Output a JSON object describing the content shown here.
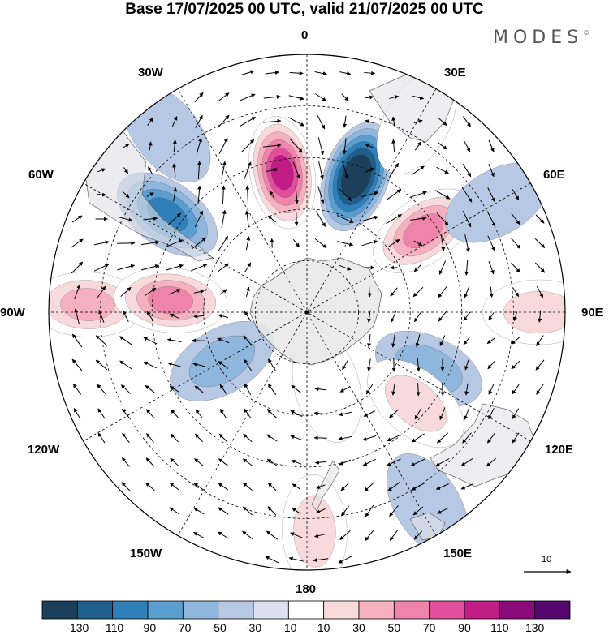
{
  "title": "Base 17/07/2025 00 UTC, valid 21/07/2025 00 UTC",
  "logo": "MODES",
  "logo_mark": "©",
  "longitude_labels": [
    {
      "key": "0",
      "text": "0"
    },
    {
      "key": "30E",
      "text": "30E"
    },
    {
      "key": "60E",
      "text": "60E"
    },
    {
      "key": "90E",
      "text": "90E"
    },
    {
      "key": "120E",
      "text": "120E"
    },
    {
      "key": "150E",
      "text": "150E"
    },
    {
      "key": "180",
      "text": "180"
    },
    {
      "key": "150W",
      "text": "150W"
    },
    {
      "key": "120W",
      "text": "120W"
    },
    {
      "key": "90W",
      "text": "90W"
    },
    {
      "key": "60W",
      "text": "60W"
    },
    {
      "key": "30W",
      "text": "30W"
    }
  ],
  "vector_scale_label": "10",
  "colorbar": {
    "ticks": [
      "-130",
      "-110",
      "-90",
      "-70",
      "-50",
      "-30",
      "-10",
      "10",
      "30",
      "50",
      "70",
      "90",
      "110",
      "130"
    ],
    "colors": [
      "#1c3f5c",
      "#1f5f8b",
      "#2f80b8",
      "#5a9dce",
      "#8fb6dc",
      "#b7c8e4",
      "#dcdff0",
      "#ffffff",
      "#f9dadc",
      "#f6b1c0",
      "#ef84aa",
      "#e04f9b",
      "#c21c87",
      "#8c0b7a",
      "#54076f"
    ]
  },
  "map_data": {
    "projection": "south-polar-stereographic",
    "anomalies": [
      {
        "lon": -10,
        "r": 0.55,
        "value": 125
      },
      {
        "lon": 20,
        "r": 0.56,
        "value": -135
      },
      {
        "lon": -55,
        "r": 0.66,
        "value": -85
      },
      {
        "lon": 55,
        "r": 0.55,
        "value": 85
      },
      {
        "lon": -88,
        "r": 0.85,
        "value": 60
      },
      {
        "lon": -85,
        "r": 0.53,
        "value": 70
      },
      {
        "lon": 90,
        "r": 0.9,
        "value": 40
      },
      {
        "lon": 115,
        "r": 0.52,
        "value": -35
      },
      {
        "lon": 130,
        "r": 0.55,
        "value": 45
      },
      {
        "lon": 178,
        "r": 0.85,
        "value": 45
      },
      {
        "lon": 148,
        "r": 0.88,
        "value": -25
      },
      {
        "lon": -120,
        "r": 0.38,
        "value": -30
      },
      {
        "lon": 165,
        "r": 0.3,
        "value": 25
      },
      {
        "lon": 30,
        "r": 0.85,
        "value": 25
      },
      {
        "lon": 60,
        "r": 0.85,
        "value": -25
      },
      {
        "lon": -38,
        "r": 0.88,
        "value": -20
      }
    ]
  }
}
